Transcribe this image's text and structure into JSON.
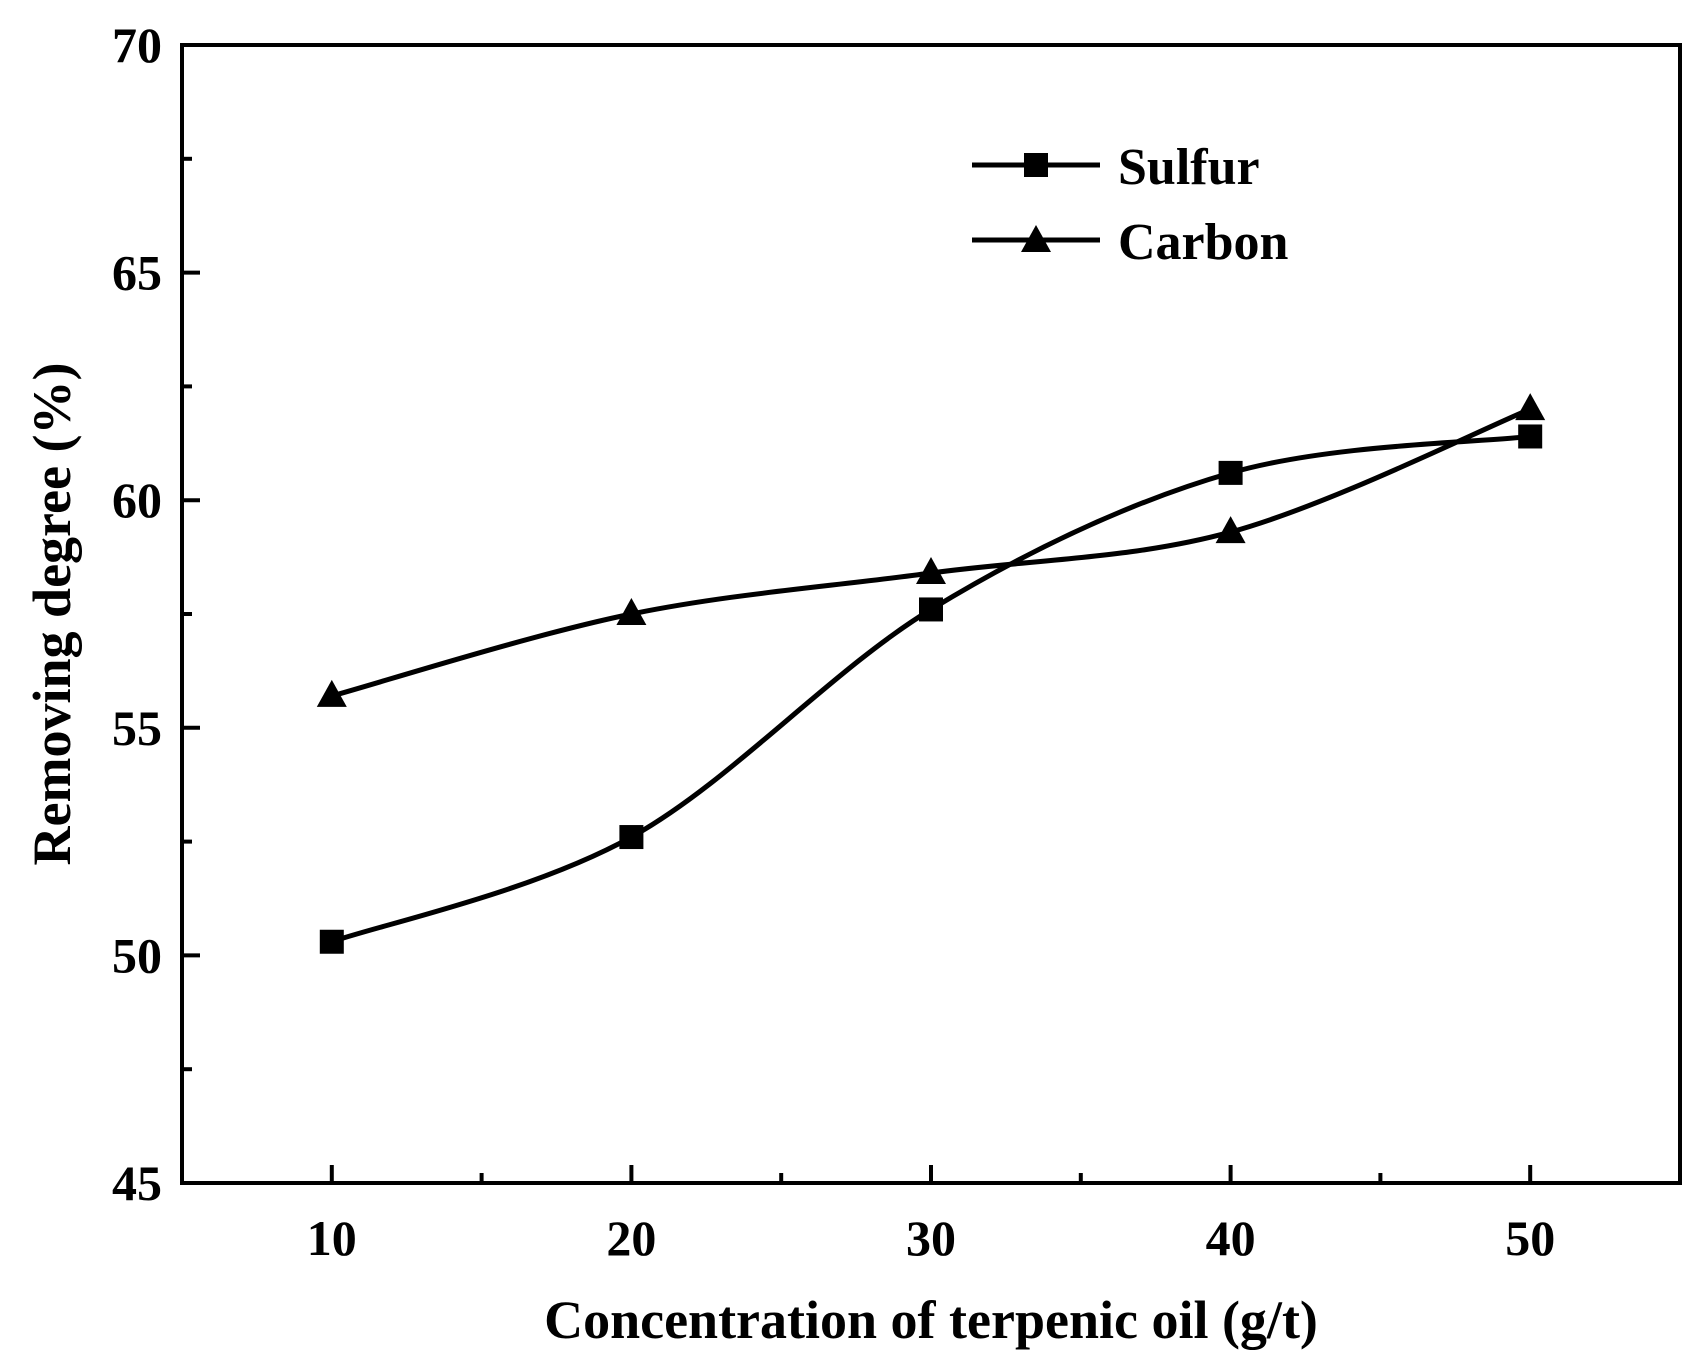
{
  "chart_data": {
    "type": "line",
    "title": "",
    "xlabel": "Concentration of terpenic oil (g/t)",
    "ylabel": "Removing degree (%)",
    "x": [
      10,
      20,
      30,
      40,
      50
    ],
    "xlim": [
      5,
      55
    ],
    "ylim": [
      45,
      70
    ],
    "xticks": [
      10,
      20,
      30,
      40,
      50
    ],
    "xticks_minor": [
      15,
      25,
      35,
      45
    ],
    "yticks": [
      45,
      50,
      55,
      60,
      65,
      70
    ],
    "yticks_minor": [
      47.5,
      52.5,
      57.5,
      62.5,
      67.5
    ],
    "grid": false,
    "legend_position": "top-right",
    "series": [
      {
        "name": "Sulfur",
        "marker": "square",
        "values": [
          50.3,
          52.6,
          57.6,
          60.6,
          61.4
        ]
      },
      {
        "name": "Carbon",
        "marker": "triangle",
        "values": [
          55.7,
          57.5,
          58.4,
          59.3,
          62.0
        ]
      }
    ]
  }
}
